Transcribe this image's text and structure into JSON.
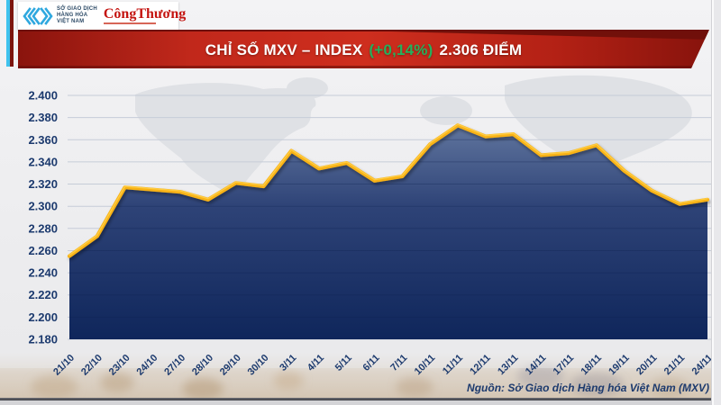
{
  "header": {
    "mxv_org": {
      "lines": [
        "SỞ GIAO DỊCH",
        "HÀNG HÓA",
        "VIỆT NAM"
      ]
    },
    "congthuong": "CôngThương",
    "banner": {
      "title": "CHỈ SỐ MXV – INDEX",
      "change": "(+0,14%)",
      "value": "2.306 ĐIỂM"
    }
  },
  "chart_data": {
    "type": "area",
    "title": "CHỈ SỐ MXV – INDEX (+0,14%) 2.306 ĐIỂM",
    "categories": [
      "21/10",
      "22/10",
      "23/10",
      "24/10",
      "27/10",
      "28/10",
      "29/10",
      "30/10",
      "3/11",
      "4/11",
      "5/11",
      "6/11",
      "7/11",
      "10/11",
      "11/11",
      "12/11",
      "13/11",
      "14/11",
      "17/11",
      "18/11",
      "19/11",
      "20/11",
      "21/11",
      "24/11"
    ],
    "values": [
      2255,
      2273,
      2317,
      2315,
      2313,
      2306,
      2321,
      2318,
      2350,
      2334,
      2339,
      2323,
      2327,
      2356,
      2373,
      2363,
      2365,
      2346,
      2348,
      2355,
      2332,
      2314,
      2302,
      2306
    ],
    "ylim": [
      2180,
      2400
    ],
    "ytick_step": 20,
    "ytick_labels": [
      "2.400",
      "2.380",
      "2.360",
      "2.340",
      "2.320",
      "2.300",
      "2.280",
      "2.260",
      "2.240",
      "2.220",
      "2.200",
      "2.180"
    ],
    "xlabel": "",
    "ylabel": "",
    "grid": true,
    "legend": "none",
    "styles": {
      "line_color": "#F8B212",
      "line_highlight": "#FFD04A",
      "area_top": "#60759E",
      "area_mid": "#2E4377",
      "area_bottom": "#0F265B",
      "label_color": "#1C3A6E",
      "grid_color": "#C6CCD8",
      "banner_red": "#CE2E1E",
      "change_green": "#25B05C"
    }
  },
  "footer": {
    "source": "Nguồn: Sở Giao dịch Hàng hóa Việt Nam (MXV)"
  }
}
